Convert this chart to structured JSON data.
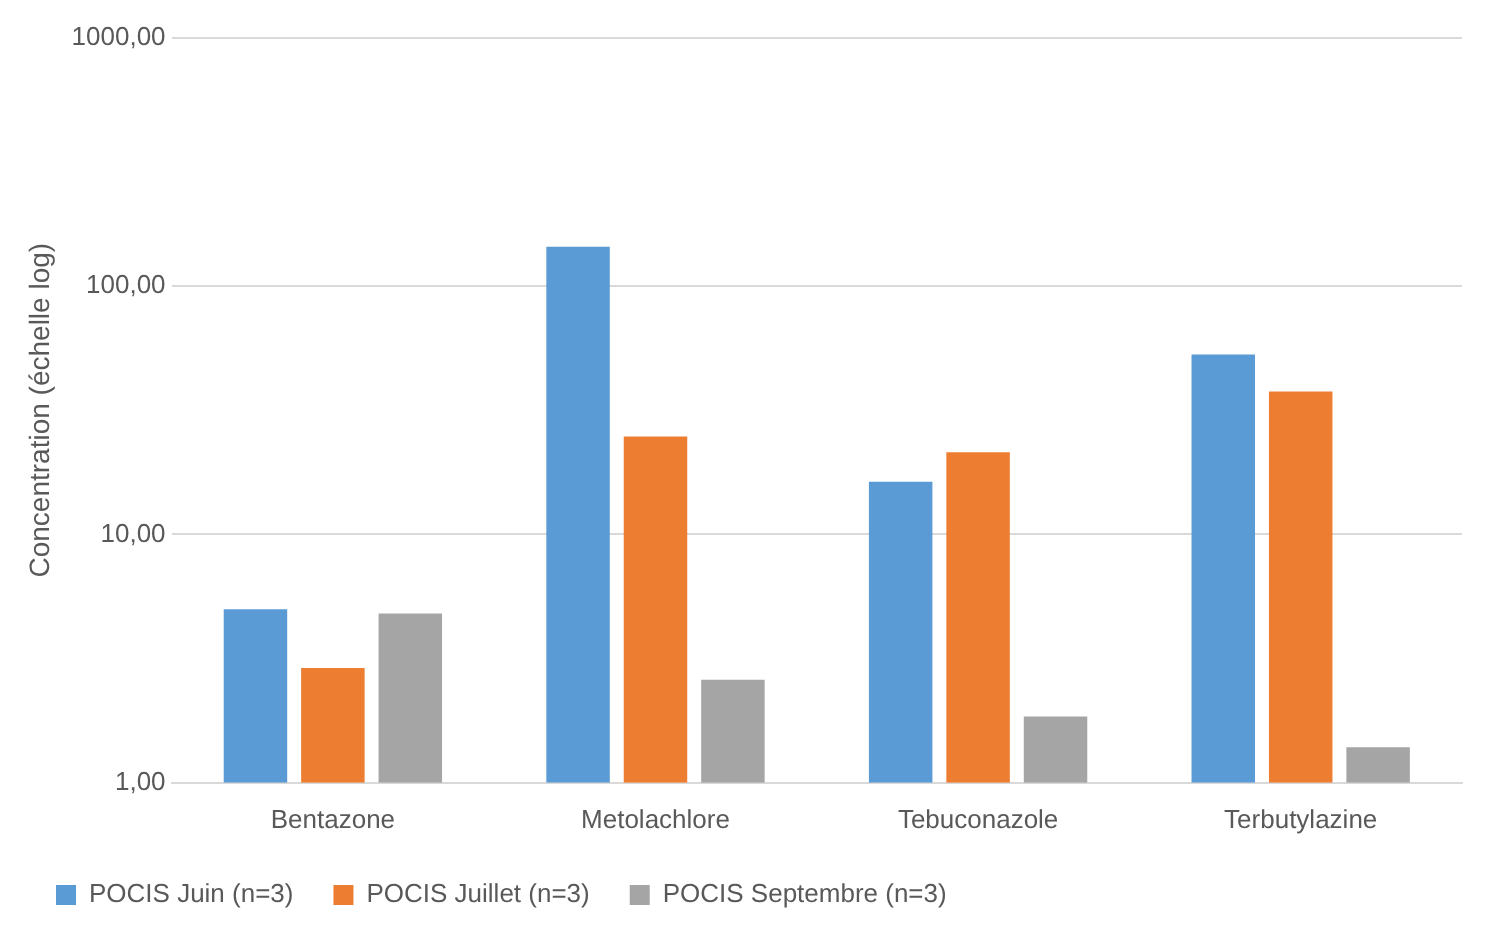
{
  "chart_data": {
    "type": "bar",
    "ylabel": "Concentration (échelle log)",
    "categories": [
      "Bentazone",
      "Metolachlore",
      "Tebuconazole",
      "Terbutylazine"
    ],
    "series": [
      {
        "name": "POCIS Juin (n=3)",
        "color": "#5b9bd5",
        "values": [
          5.0,
          144,
          16.3,
          53
        ]
      },
      {
        "name": "POCIS Juillet (n=3)",
        "color": "#ed7d31",
        "values": [
          2.9,
          24.8,
          21.4,
          37.6
        ]
      },
      {
        "name": "POCIS Septembre (n=3)",
        "color": "#a5a5a5",
        "values": [
          4.8,
          2.6,
          1.85,
          1.39
        ]
      }
    ],
    "log": "y",
    "ylim": [
      1,
      1000
    ],
    "yticks": [
      {
        "value": 1,
        "label": "1,00"
      },
      {
        "value": 10,
        "label": "10,00"
      },
      {
        "value": 100,
        "label": "100,00"
      },
      {
        "value": 1000,
        "label": "1000,00"
      }
    ],
    "grid": "y",
    "legend": "bottom"
  }
}
